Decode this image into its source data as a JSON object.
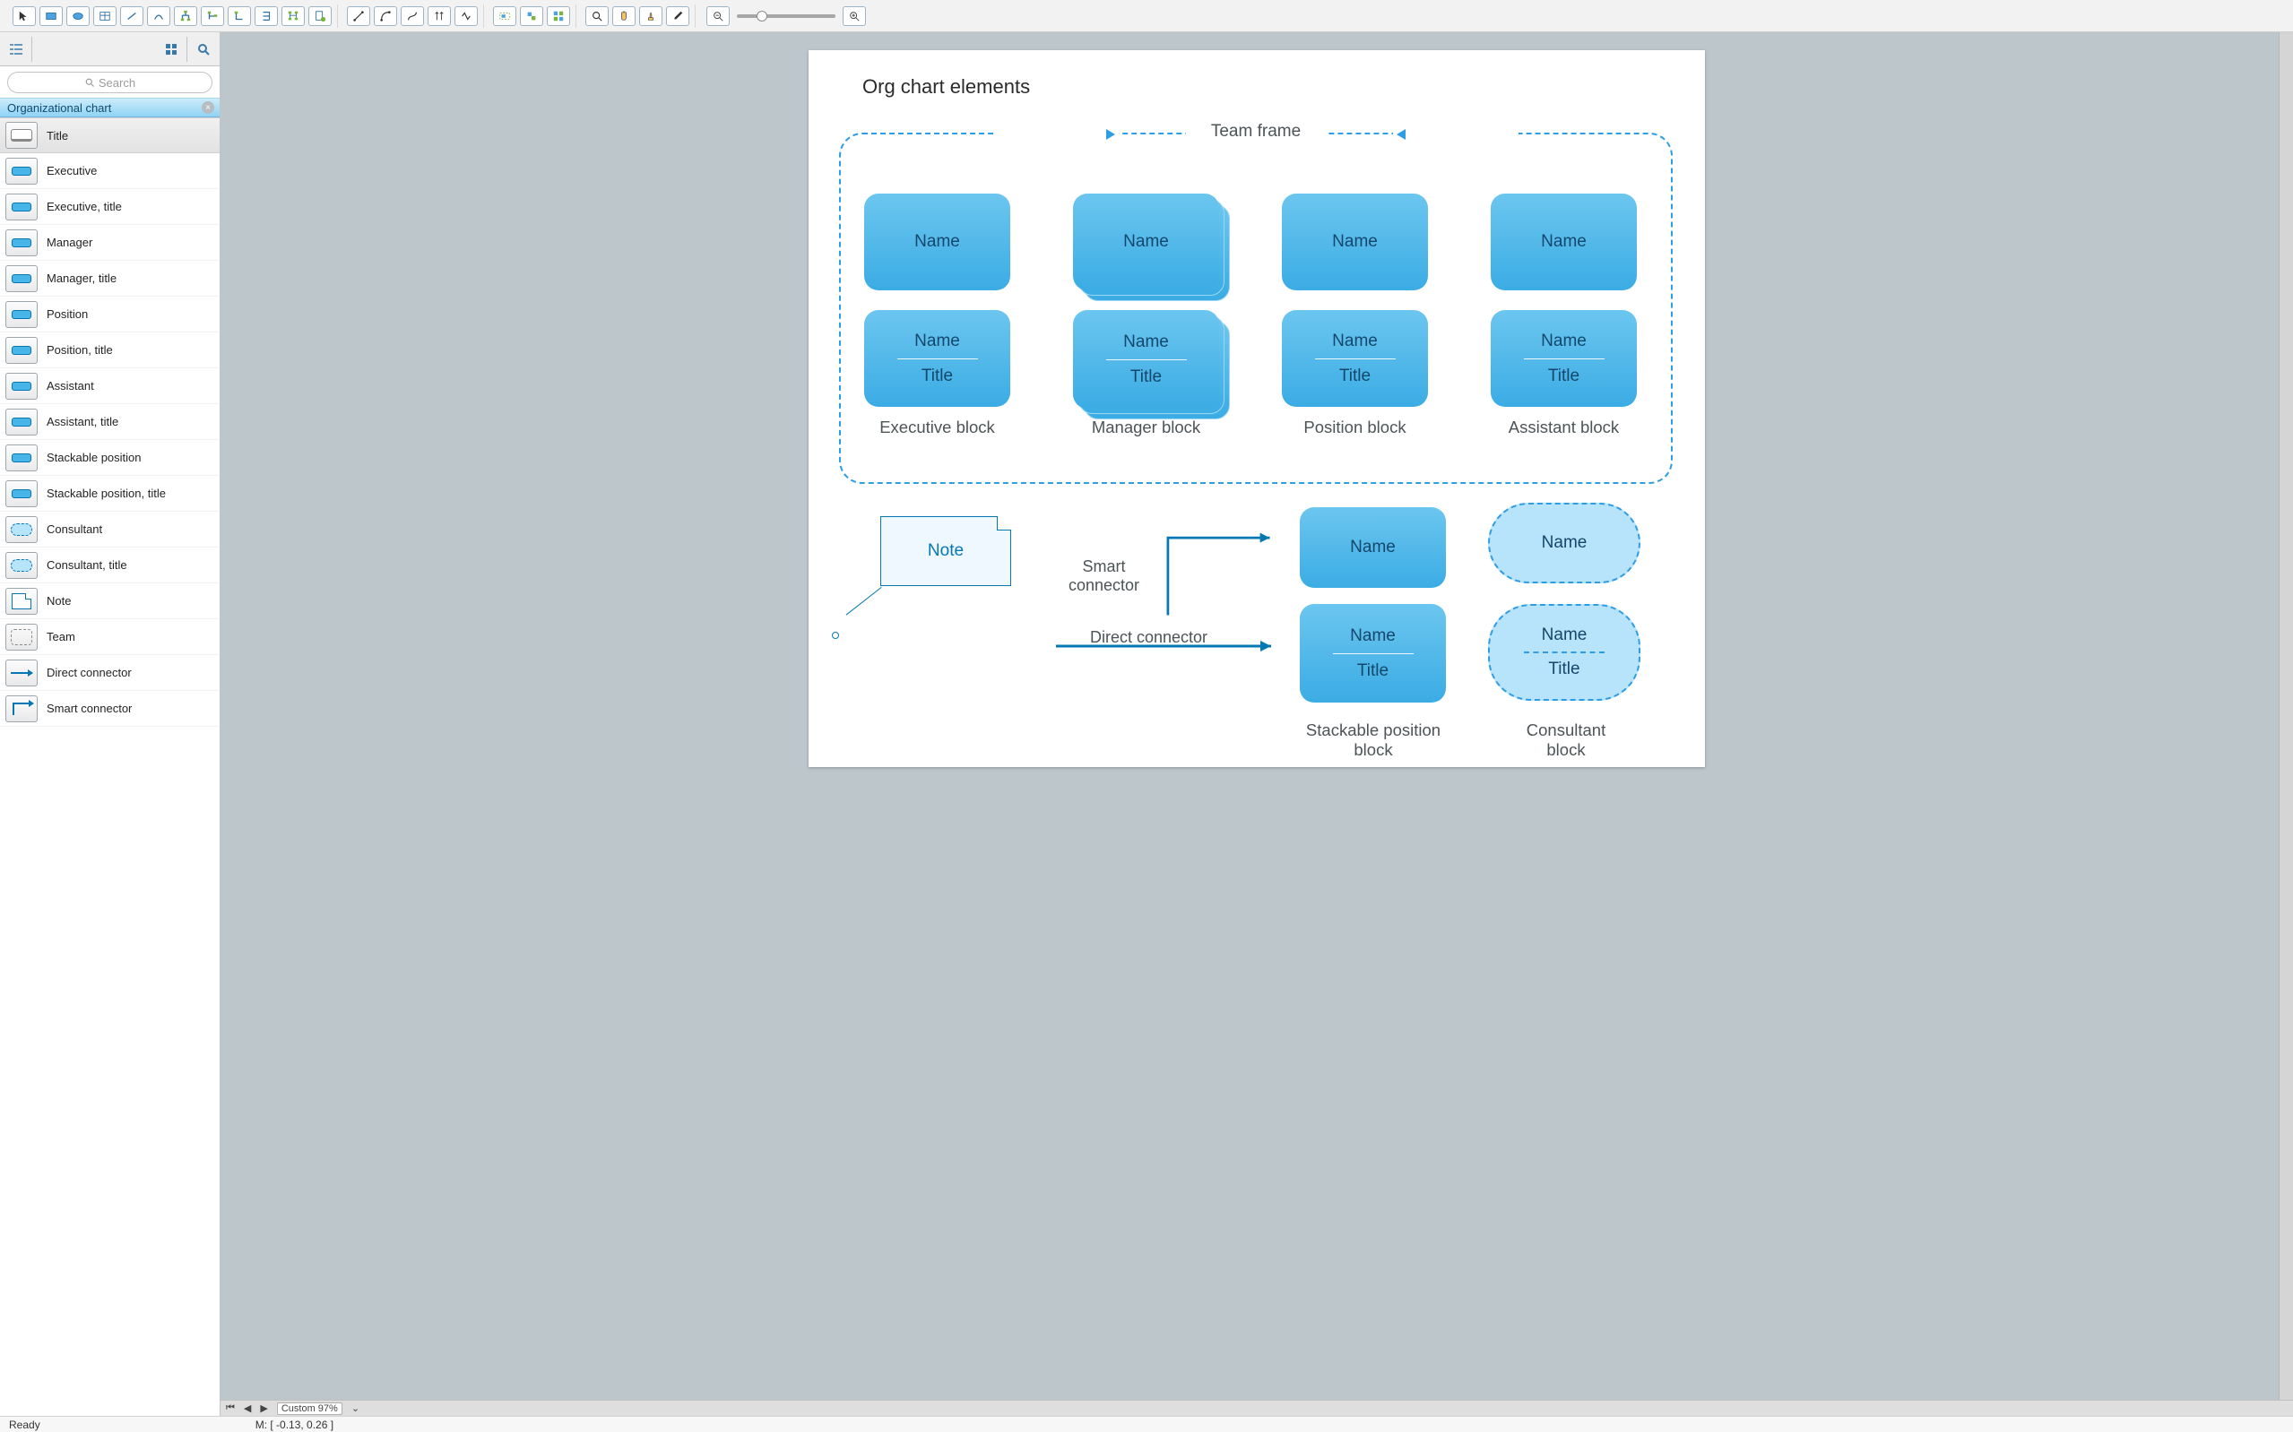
{
  "toolbar_icons": {
    "g1": [
      "pointer",
      "rect",
      "ellipse",
      "table",
      "line",
      "curve",
      "ortho-tree",
      "ortho-connector",
      "corner",
      "branch",
      "hierarchy",
      "page-new"
    ],
    "g2": [
      "conn-line",
      "conn-curve",
      "conn-smart",
      "conn-double",
      "conn-spline"
    ],
    "g3": [
      "align-select",
      "align-group",
      "align-distribute"
    ],
    "g4": [
      "zoom-fit",
      "hand",
      "stamp",
      "eyedropper"
    ],
    "zoom_out": "zoom-out",
    "zoom_in": "zoom-in"
  },
  "search_placeholder": "Search",
  "panel": {
    "title": "Organizational chart",
    "items": [
      {
        "label": "Title",
        "icon": "title",
        "selected": true
      },
      {
        "label": "Executive",
        "icon": "block"
      },
      {
        "label": "Executive, title",
        "icon": "block"
      },
      {
        "label": "Manager",
        "icon": "block"
      },
      {
        "label": "Manager, title",
        "icon": "block"
      },
      {
        "label": "Position",
        "icon": "block"
      },
      {
        "label": "Position, title",
        "icon": "block"
      },
      {
        "label": "Assistant",
        "icon": "block"
      },
      {
        "label": "Assistant, title",
        "icon": "block"
      },
      {
        "label": "Stackable position",
        "icon": "block"
      },
      {
        "label": "Stackable position, title",
        "icon": "block"
      },
      {
        "label": "Consultant",
        "icon": "oval"
      },
      {
        "label": "Consultant, title",
        "icon": "oval"
      },
      {
        "label": "Note",
        "icon": "note"
      },
      {
        "label": "Team",
        "icon": "team"
      },
      {
        "label": "Direct connector",
        "icon": "line"
      },
      {
        "label": "Smart connector",
        "icon": "smart"
      }
    ]
  },
  "canvas": {
    "page_title": "Org chart elements",
    "team_frame_label": "Team frame",
    "name_text": "Name",
    "title_text": "Title",
    "columns": [
      "Executive block",
      "Manager block",
      "Position block",
      "Assistant block"
    ],
    "note_text": "Note",
    "smart_label_l1": "Smart",
    "smart_label_l2": "connector",
    "direct_label": "Direct connector",
    "stackable_label_l1": "Stackable position",
    "stackable_label_l2": "block",
    "consultant_label_l1": "Consultant",
    "consultant_label_l2": "block",
    "colors": {
      "block_fill_top": "#6cc6ef",
      "block_fill_bottom": "#3bace4",
      "dashed_border": "#2d9de5",
      "consultant_fill": "#b7e3fb",
      "name_color": "#14476c",
      "label_color": "#4d5457",
      "connector_color": "#0577b3"
    }
  },
  "bottom": {
    "zoom_label": "Custom 97%"
  },
  "status": {
    "ready": "Ready",
    "mouse": "M: [ -0.13, 0.26 ]"
  }
}
